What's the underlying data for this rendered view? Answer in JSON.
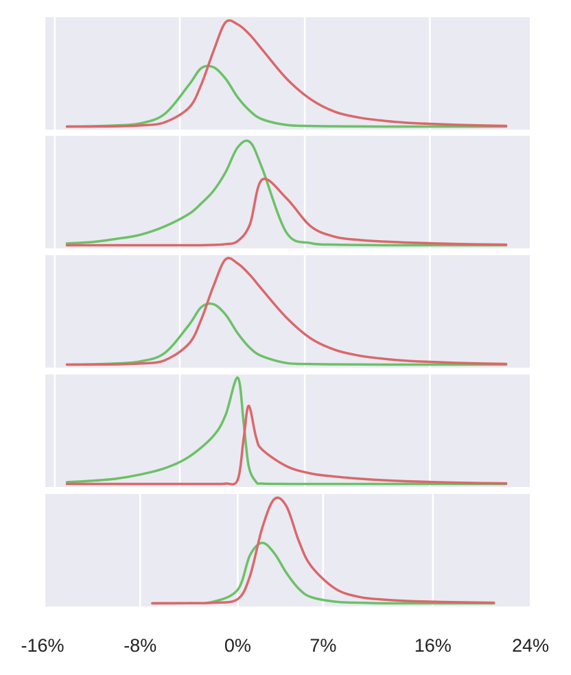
{
  "chart_data": [
    {
      "type": "line",
      "xlim": [
        -16,
        24
      ],
      "ylim": [
        -3,
        105
      ],
      "xgrid": [
        -15,
        -4.75,
        5.5,
        15.75
      ],
      "x": [
        -14,
        -12,
        -10,
        -8,
        -6,
        -4,
        -3,
        -2,
        -1,
        0,
        1,
        2,
        4,
        6,
        8,
        10,
        12,
        14,
        16,
        18,
        20,
        22
      ],
      "series": [
        {
          "color": "#6bc167",
          "values": [
            0,
            0.3,
            1,
            3,
            12,
            40,
            56,
            57,
            46,
            28,
            15,
            7,
            1.5,
            0.5,
            0.2,
            0.1,
            0,
            0,
            0,
            0,
            0,
            0
          ]
        },
        {
          "color": "#d9686a",
          "values": [
            0,
            0,
            0.2,
            1,
            4,
            18,
            40,
            72,
            100,
            98,
            88,
            74,
            46,
            26,
            14,
            8.5,
            5.5,
            3.5,
            2.5,
            1.6,
            1,
            0.6
          ]
        }
      ]
    },
    {
      "type": "line",
      "xlim": [
        -16,
        24
      ],
      "ylim": [
        -3,
        105
      ],
      "xgrid": [
        -15,
        -4.75,
        5.5,
        15.75
      ],
      "x": [
        -14,
        -12,
        -10,
        -8,
        -6,
        -4,
        -3,
        -2,
        -1,
        0,
        1,
        2,
        4,
        6,
        8,
        10,
        12,
        14,
        16,
        18,
        20,
        22
      ],
      "series": [
        {
          "color": "#6bc167",
          "values": [
            1.7,
            3,
            6,
            10,
            18,
            30,
            40,
            52,
            70,
            94,
            99,
            74,
            12,
            2,
            0.5,
            0.2,
            0,
            0,
            0,
            0,
            0,
            0
          ]
        },
        {
          "color": "#d9686a",
          "values": [
            0,
            0,
            0,
            0,
            0,
            0,
            0,
            0.3,
            1,
            4,
            20,
            63,
            45,
            18,
            8,
            5,
            3.5,
            2.5,
            1.8,
            1.2,
            0.8,
            0.5
          ]
        }
      ]
    },
    {
      "type": "line",
      "xlim": [
        -16,
        24
      ],
      "ylim": [
        -3,
        105
      ],
      "xgrid": [
        -15,
        -4.75,
        5.5,
        15.75
      ],
      "x": [
        -14,
        -12,
        -10,
        -8,
        -6,
        -4,
        -3,
        -2,
        -1,
        0,
        1,
        2,
        4,
        6,
        8,
        10,
        12,
        14,
        16,
        18,
        20,
        22
      ],
      "series": [
        {
          "color": "#6bc167",
          "values": [
            0,
            0.3,
            1,
            3,
            11,
            38,
            55,
            58,
            48,
            30,
            16,
            8,
            1.5,
            0.5,
            0.2,
            0.1,
            0,
            0,
            0,
            0,
            0,
            0
          ]
        },
        {
          "color": "#d9686a",
          "values": [
            0,
            0,
            0.2,
            1,
            4,
            20,
            43,
            75,
            101,
            97,
            86,
            72,
            45,
            25,
            14,
            8.5,
            5.5,
            3.5,
            2.5,
            1.6,
            1,
            0.6
          ]
        }
      ]
    },
    {
      "type": "line",
      "xlim": [
        -16,
        24
      ],
      "ylim": [
        -3,
        105
      ],
      "xgrid": [
        -15,
        -4.75,
        5.5,
        15.75
      ],
      "x": [
        -14,
        -12,
        -10,
        -8,
        -6,
        -4,
        -2,
        -1,
        0,
        0.5,
        0.9,
        1.5,
        2,
        4,
        6,
        8,
        10,
        12,
        14,
        16,
        18,
        20,
        22
      ],
      "series": [
        {
          "color": "#6bc167",
          "values": [
            1.7,
            3,
            5,
            9,
            15,
            26,
            46,
            66,
            102,
            57,
            17,
            2,
            0.3,
            0,
            0,
            0,
            0,
            0,
            0,
            0,
            0,
            0,
            0
          ]
        },
        {
          "color": "#d9686a",
          "values": [
            0,
            0,
            0,
            0,
            0,
            0,
            0,
            0.3,
            4,
            45,
            75,
            45,
            33,
            17,
            10,
            7,
            5,
            3.5,
            2.5,
            1.8,
            1.2,
            0.8,
            0.5
          ]
        }
      ]
    },
    {
      "type": "line",
      "xlim": [
        -16,
        24
      ],
      "ylim": [
        -3,
        105
      ],
      "xticks": [
        {
          "value": -16,
          "label": "-16%"
        },
        {
          "value": -8,
          "label": "-8%"
        },
        {
          "value": 0,
          "label": "0%"
        },
        {
          "value": 7,
          "label": "7%"
        },
        {
          "value": 16,
          "label": "16%"
        },
        {
          "value": 24,
          "label": "24%"
        }
      ],
      "x": [
        -7,
        -4,
        -2,
        0,
        1,
        2,
        3,
        4,
        5,
        6,
        8,
        10,
        12,
        14,
        16,
        18,
        21
      ],
      "series": [
        {
          "color": "#6bc167",
          "values": [
            0,
            0.2,
            1.5,
            13,
            46,
            58,
            48,
            29,
            14,
            6,
            1.5,
            0.5,
            0,
            0,
            0,
            0,
            0
          ]
        },
        {
          "color": "#d9686a",
          "values": [
            0,
            0.1,
            0.5,
            4,
            26,
            72,
            100,
            93,
            60,
            36,
            14,
            6,
            3.5,
            2.2,
            1.5,
            1,
            0.5
          ]
        }
      ]
    }
  ]
}
